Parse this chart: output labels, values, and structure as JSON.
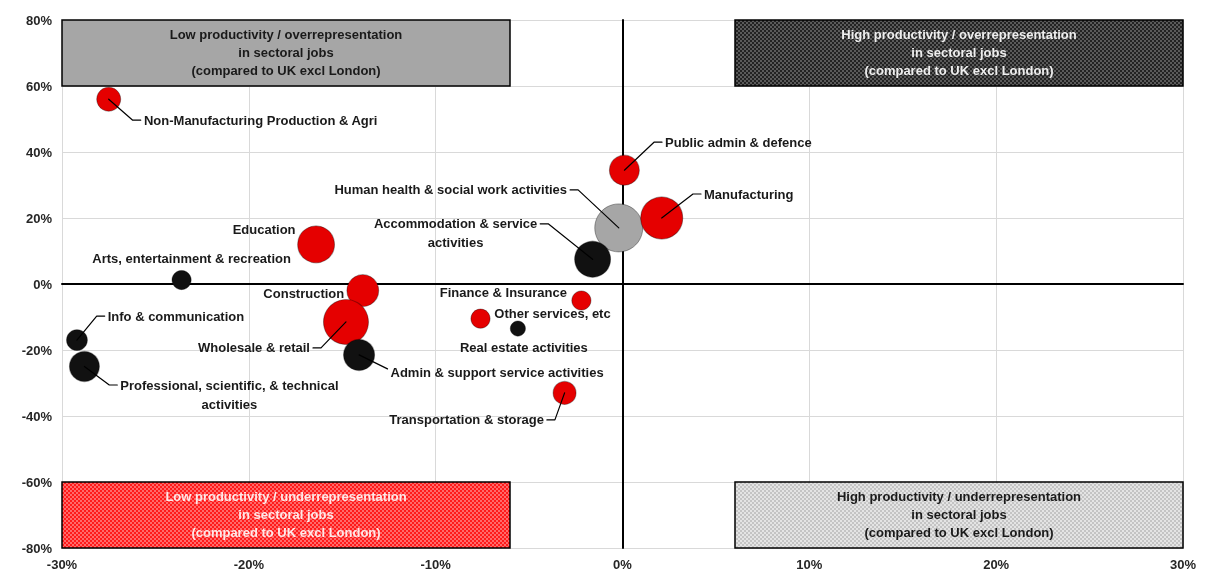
{
  "chart_data": {
    "type": "bubble",
    "xlim": [
      -30,
      30
    ],
    "ylim": [
      -80,
      80
    ],
    "xticks": [
      {
        "value": -30,
        "label": "-30%"
      },
      {
        "value": -20,
        "label": "-20%"
      },
      {
        "value": -10,
        "label": "-10%"
      },
      {
        "value": 0,
        "label": "0%"
      },
      {
        "value": 10,
        "label": "10%"
      },
      {
        "value": 20,
        "label": "20%"
      },
      {
        "value": 30,
        "label": "30%"
      }
    ],
    "yticks": [
      {
        "value": -80,
        "label": "-80%"
      },
      {
        "value": -60,
        "label": "-60%"
      },
      {
        "value": -40,
        "label": "-40%"
      },
      {
        "value": -20,
        "label": "-20%"
      },
      {
        "value": 0,
        "label": "0%"
      },
      {
        "value": 20,
        "label": "20%"
      },
      {
        "value": 40,
        "label": "40%"
      },
      {
        "value": 60,
        "label": "60%"
      },
      {
        "value": 80,
        "label": "80%"
      }
    ],
    "grid": true,
    "legend": false,
    "annotations": [
      "Low productivity / overrepresentation\nin sectoral jobs\n(compared to UK excl London)",
      "High productivity / overrepresentation\nin sectoral jobs\n(compared to UK excl London)",
      "Low productivity / underrepresentation\nin sectoral jobs\n(compared to UK excl London)",
      "High productivity / underrepresentation\nin sectoral jobs\n(compared to UK excl London)"
    ],
    "series": [
      {
        "name": "Non-Manufacturing Production & Agri",
        "color": "#e50000",
        "x": [
          -27.5
        ],
        "values": [
          56
        ],
        "sizes": [
          0.25
        ]
      },
      {
        "name": "Public admin & defence",
        "color": "#e50000",
        "x": [
          0.1
        ],
        "values": [
          34.5
        ],
        "sizes": [
          0.39
        ]
      },
      {
        "name": "Human health & social work activities",
        "color": "#a6a6a6",
        "x": [
          -0.2
        ],
        "values": [
          17
        ],
        "sizes": [
          1
        ]
      },
      {
        "name": "Manufacturing",
        "color": "#e50000",
        "x": [
          2.1
        ],
        "values": [
          20
        ],
        "sizes": [
          0.77
        ]
      },
      {
        "name": "Accommodation & service\nactivities",
        "color": "#111111",
        "x": [
          -1.6
        ],
        "values": [
          7.5
        ],
        "sizes": [
          0.56
        ]
      },
      {
        "name": "Education",
        "color": "#e50000",
        "x": [
          -16.4
        ],
        "values": [
          12
        ],
        "sizes": [
          0.59
        ]
      },
      {
        "name": "Arts, entertainment & recreation",
        "color": "#111111",
        "x": [
          -23.6
        ],
        "values": [
          1.2
        ],
        "sizes": [
          0.16
        ]
      },
      {
        "name": "Construction",
        "color": "#e50000",
        "x": [
          -13.9
        ],
        "values": [
          -2
        ],
        "sizes": [
          0.44
        ]
      },
      {
        "name": "Wholesale & retail",
        "color": "#e50000",
        "x": [
          -14.8
        ],
        "values": [
          -11.5
        ],
        "sizes": [
          0.88
        ]
      },
      {
        "name": "Admin & support service activities",
        "color": "#111111",
        "x": [
          -14.1
        ],
        "values": [
          -21.5
        ],
        "sizes": [
          0.42
        ]
      },
      {
        "name": "Info & communication",
        "color": "#111111",
        "x": [
          -29.2
        ],
        "values": [
          -17
        ],
        "sizes": [
          0.19
        ]
      },
      {
        "name": "Professional, scientific, & technical\nactivities",
        "color": "#111111",
        "x": [
          -28.8
        ],
        "values": [
          -25
        ],
        "sizes": [
          0.39
        ]
      },
      {
        "name": "Finance & Insurance",
        "color": "#e50000",
        "x": [
          -2.2
        ],
        "values": [
          -5
        ],
        "sizes": [
          0.16
        ]
      },
      {
        "name": "Other services, etc",
        "color": "#e50000",
        "x": [
          -7.6
        ],
        "values": [
          -10.5
        ],
        "sizes": [
          0.16
        ]
      },
      {
        "name": "Real estate activities",
        "color": "#111111",
        "x": [
          -5.6
        ],
        "values": [
          -13.5
        ],
        "sizes": [
          0.1
        ]
      },
      {
        "name": "Transportation & storage",
        "color": "#e50000",
        "x": [
          -3.1
        ],
        "values": [
          -33
        ],
        "sizes": [
          0.23
        ]
      }
    ]
  }
}
